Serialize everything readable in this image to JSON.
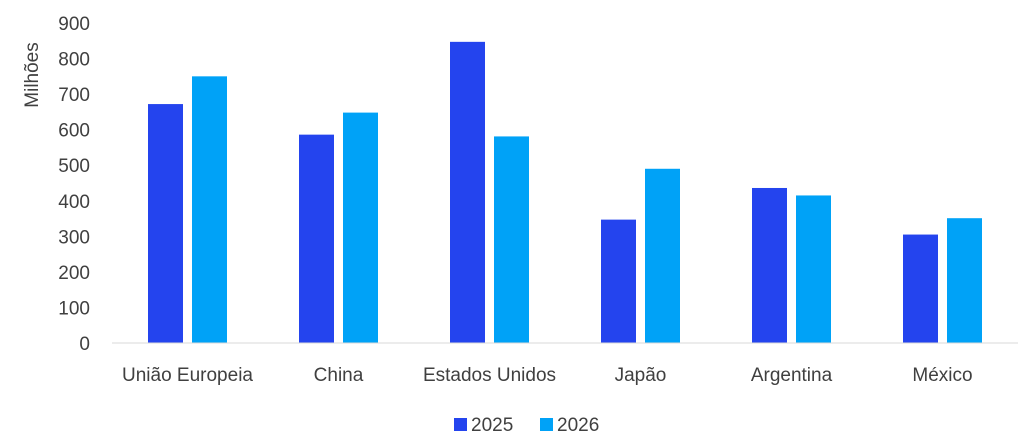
{
  "chart_data": {
    "type": "bar",
    "categories": [
      "União Europeia",
      "China",
      "Estados Unidos",
      "Japão",
      "Argentina",
      "México"
    ],
    "series": [
      {
        "name": "2025",
        "color": "#2444ee",
        "values": [
          672,
          586,
          847,
          347,
          436,
          305
        ]
      },
      {
        "name": "2026",
        "color": "#00a2f7",
        "values": [
          750,
          648,
          581,
          490,
          415,
          351
        ]
      }
    ],
    "title": "",
    "xlabel": "",
    "ylabel": "Milhões",
    "ylim": [
      0,
      900
    ],
    "yticks": [
      0,
      100,
      200,
      300,
      400,
      500,
      600,
      700,
      800,
      900
    ],
    "grid": false,
    "legend_position": "bottom-center"
  }
}
